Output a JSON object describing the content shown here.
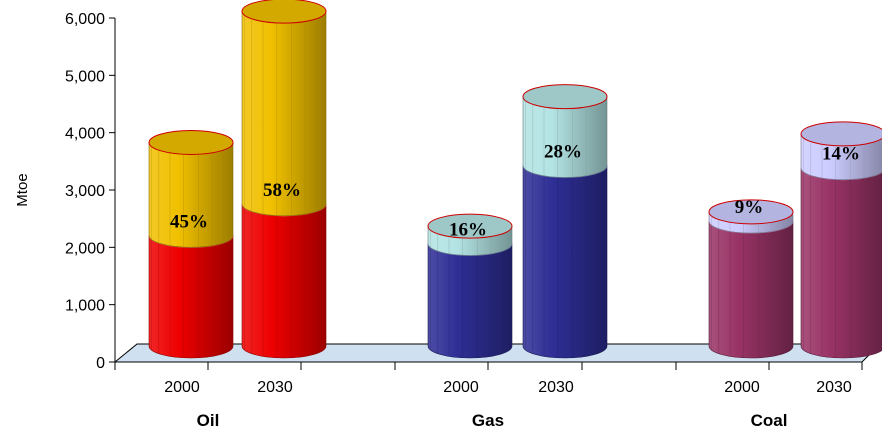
{
  "chart_data": {
    "type": "bar",
    "style": "stacked 3D cylinder",
    "ylabel": "Mtoe",
    "ylim": [
      0,
      6000
    ],
    "y_ticks": [
      "0",
      "1,000",
      "2,000",
      "3,000",
      "4,000",
      "5,000",
      "6,000"
    ],
    "groups": [
      {
        "name": "Oil",
        "bars": [
          {
            "year": "2000",
            "lower": 1930,
            "total": 3550,
            "label": "45%",
            "colors": {
              "lower": "#ee0000",
              "upper": "#f0c000"
            }
          },
          {
            "year": "2030",
            "lower": 2480,
            "total": 5840,
            "label": "58%",
            "colors": {
              "lower": "#ee0000",
              "upper": "#f0c000"
            }
          }
        ]
      },
      {
        "name": "Gas",
        "bars": [
          {
            "year": "2000",
            "lower": 1790,
            "total": 2090,
            "label": "16%",
            "colors": {
              "lower": "#2e2e96",
              "upper": "#b3e3e3"
            }
          },
          {
            "year": "2030",
            "lower": 3150,
            "total": 4350,
            "label": "28%",
            "colors": {
              "lower": "#2e2e96",
              "upper": "#b3e3e3"
            }
          }
        ]
      },
      {
        "name": "Coal",
        "bars": [
          {
            "year": "2000",
            "lower": 2180,
            "total": 2340,
            "label": "9%",
            "colors": {
              "lower": "#993366",
              "upper": "#ccccff"
            }
          },
          {
            "year": "2030",
            "lower": 3110,
            "total": 3700,
            "label": "14%",
            "colors": {
              "lower": "#993366",
              "upper": "#ccccff"
            }
          }
        ]
      }
    ],
    "floor_color": "#cfe0f0"
  }
}
